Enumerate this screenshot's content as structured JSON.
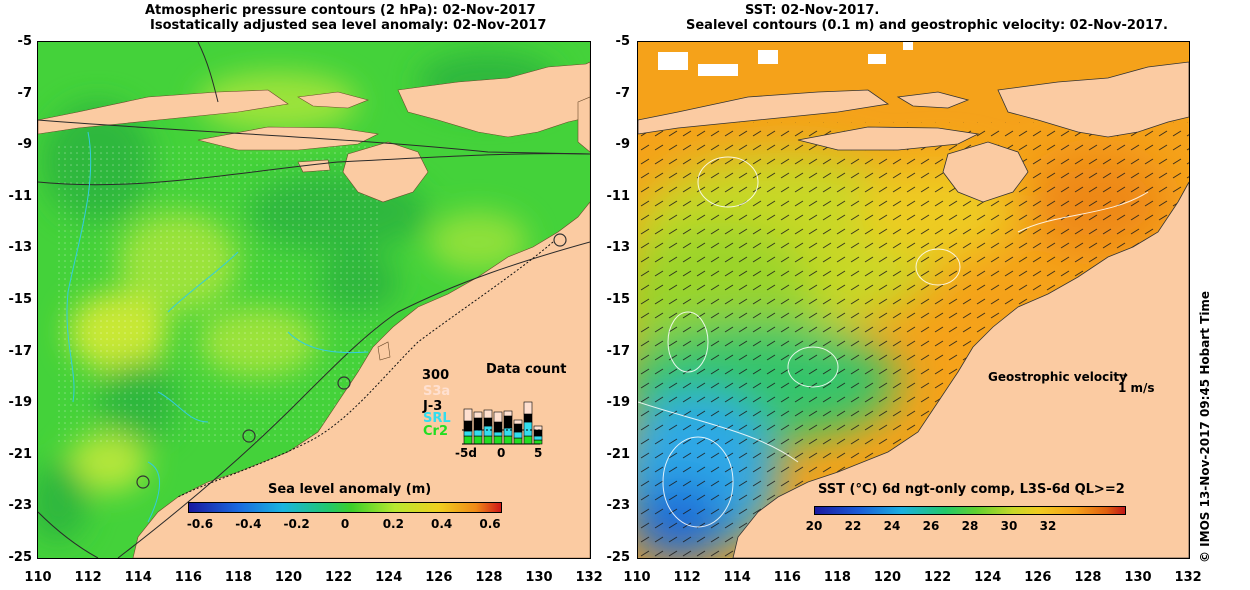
{
  "left_panel": {
    "title_line1": "Atmospheric pressure contours (2 hPa): 02-Nov-2017",
    "title_line2": "Isostatically adjusted sea level anomaly: 02-Nov-2017",
    "colorbar_label": "Sea level anomaly (m)",
    "colorbar_ticks": [
      "-0.6",
      "-0.4",
      "-0.2",
      "0",
      "0.2",
      "0.4",
      "0.6"
    ],
    "data_count": {
      "title": "Data count",
      "max_label": "300",
      "missions": [
        {
          "name": "S3a",
          "color": "#ffe0d0"
        },
        {
          "name": "J-3",
          "color": "#000000"
        },
        {
          "name": "SRL",
          "color": "#33ddee"
        },
        {
          "name": "Cr2",
          "color": "#22dd22"
        }
      ],
      "x_ticks": [
        "-5d",
        "0",
        "5"
      ]
    }
  },
  "right_panel": {
    "title_line1": "SST: 02-Nov-2017.",
    "title_line2": "Sealevel contours (0.1 m) and geostrophic velocity: 02-Nov-2017.",
    "legend_text": "Geostrophic velocity",
    "legend_unit": "1 m/s",
    "colorbar_label": "SST (°C) 6d ngt-only comp, L3S-6d QL>=2",
    "colorbar_ticks": [
      "20",
      "22",
      "24",
      "26",
      "28",
      "30",
      "32"
    ]
  },
  "axes": {
    "y_ticks": [
      "-5",
      "-7",
      "-9",
      "-11",
      "-13",
      "-15",
      "-17",
      "-19",
      "-21",
      "-23",
      "-25"
    ],
    "x_ticks": [
      "110",
      "112",
      "114",
      "116",
      "118",
      "120",
      "122",
      "124",
      "126",
      "128",
      "130",
      "132"
    ]
  },
  "credit": "© IMOS 13-Nov-2017 09:45 Hobart Time",
  "colors": {
    "land": "#fbcba2",
    "sla_base": "#44d23a",
    "sst_base": "#f5a21a",
    "sst_cool": "#2ea8e6"
  }
}
